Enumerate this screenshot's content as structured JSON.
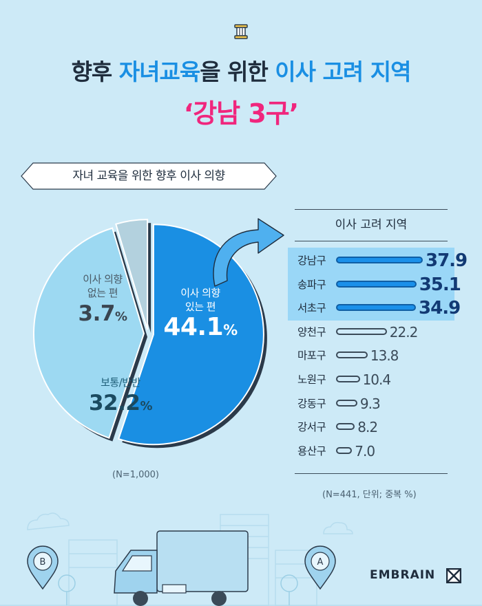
{
  "header": {
    "title_parts": [
      "향후 ",
      "자녀교육",
      "을 위한 ",
      "이사 고려 지역"
    ],
    "subtitle": "‘강남 3구’"
  },
  "banner_text": "자녀 교육을 위한 향후 이사 의향",
  "region_panel_title": "이사 고려 지역",
  "notes": {
    "pie": "(N=1,000)",
    "bars": "(N=441, 단위; 중복 %)"
  },
  "logo_text": "EMBRAIN",
  "colors": {
    "accent": "#1a8fe3",
    "pink": "#f0267d",
    "background": "#cdeaf7",
    "pie_yes": "#1a8fe3",
    "pie_mid": "#9dd9f2",
    "pie_no": "#b3d1de",
    "bar_highlight": "#1a90ea",
    "bar_rest": "#cfeaf8"
  },
  "icons": [
    "pillar-icon",
    "curved-arrow-icon",
    "truck-icon",
    "map-pin-b-icon",
    "map-pin-a-icon",
    "embrain-logo-icon"
  ],
  "chart_data": [
    {
      "type": "pie",
      "slices": [
        {
          "label_lines": [
            "이사 의향",
            "있는 편"
          ],
          "value": 44.1,
          "display": "44.1",
          "unit": "%"
        },
        {
          "label_lines": [
            "보통/반반"
          ],
          "value": 32.2,
          "display": "32.2",
          "unit": "%"
        },
        {
          "label_lines": [
            "이사 의향",
            "없는 편"
          ],
          "value": 3.7,
          "display": "3.7",
          "unit": "%"
        }
      ]
    },
    {
      "type": "bar",
      "orientation": "horizontal",
      "categories": [
        "강남구",
        "송파구",
        "서초구",
        "양천구",
        "마포구",
        "노원구",
        "강동구",
        "강서구",
        "용산구"
      ],
      "values": [
        37.9,
        35.1,
        34.9,
        22.2,
        13.8,
        10.4,
        9.3,
        8.2,
        7.0
      ],
      "labels": [
        "37.9",
        "35.1",
        "34.9",
        "22.2",
        "13.8",
        "10.4",
        "9.3",
        "8.2",
        "7.0"
      ],
      "highlighted_count": 3
    }
  ]
}
